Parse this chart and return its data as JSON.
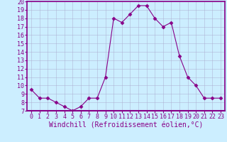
{
  "x": [
    0,
    1,
    2,
    3,
    4,
    5,
    6,
    7,
    8,
    9,
    10,
    11,
    12,
    13,
    14,
    15,
    16,
    17,
    18,
    19,
    20,
    21,
    22,
    23
  ],
  "y": [
    9.5,
    8.5,
    8.5,
    8.0,
    7.5,
    7.0,
    7.5,
    8.5,
    8.5,
    11.0,
    18.0,
    17.5,
    18.5,
    19.5,
    19.5,
    18.0,
    17.0,
    17.5,
    13.5,
    11.0,
    10.0,
    8.5,
    8.5,
    8.5
  ],
  "line_color": "#880088",
  "marker": "D",
  "marker_size": 2.5,
  "bg_color": "#cceeff",
  "grid_color": "#aaaacc",
  "xlabel": "Windchill (Refroidissement éolien,°C)",
  "xlabel_color": "#880088",
  "xlabel_fontsize": 7,
  "tick_color": "#880088",
  "tick_fontsize": 6,
  "ylim": [
    7,
    20
  ],
  "xlim": [
    -0.5,
    23.5
  ],
  "yticks": [
    7,
    8,
    9,
    10,
    11,
    12,
    13,
    14,
    15,
    16,
    17,
    18,
    19,
    20
  ],
  "xticks": [
    0,
    1,
    2,
    3,
    4,
    5,
    6,
    7,
    8,
    9,
    10,
    11,
    12,
    13,
    14,
    15,
    16,
    17,
    18,
    19,
    20,
    21,
    22,
    23
  ]
}
